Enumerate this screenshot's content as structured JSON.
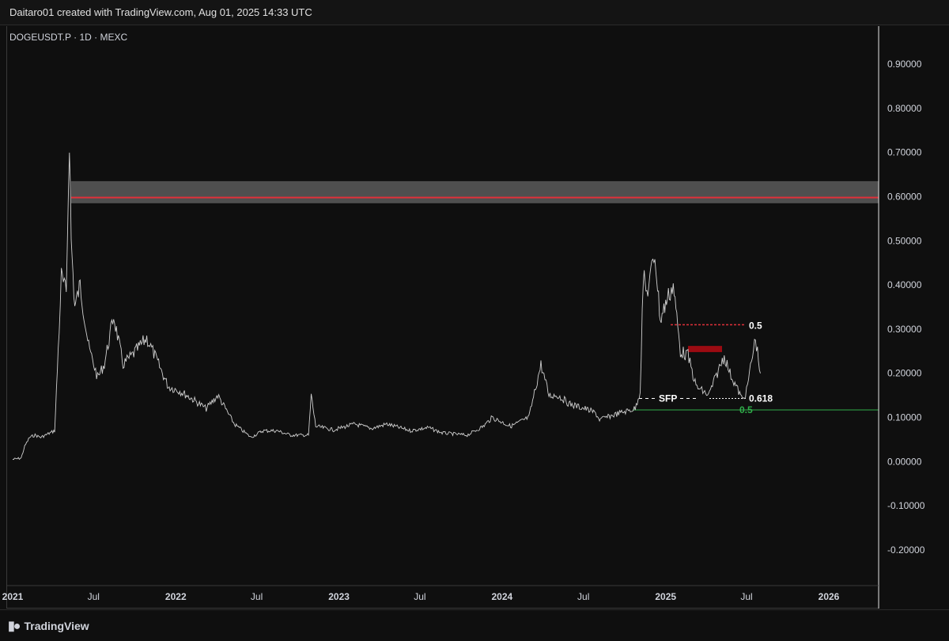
{
  "header": {
    "attribution": "Daitaro01 created with TradingView.com, Aug 01, 2025 14:33 UTC"
  },
  "chart": {
    "symbol_line": "DOGEUSDT.P · 1D · MEXC"
  },
  "footer": {
    "brand": "TradingView"
  },
  "colors": {
    "background": "#0f0f0f",
    "price_line": "#cfcfcf",
    "resistance_zone": "#5a5a5a",
    "resistance_line": "#e0303a",
    "supply_block": "#9b0b12",
    "support_line": "#2fae4a",
    "fib_red": "#e0303a",
    "fib_green": "#2fae4a"
  },
  "chart_data": {
    "type": "line",
    "title": "DOGEUSDT.P · 1D · MEXC",
    "ylim": [
      -0.25,
      0.99
    ],
    "y_ticks": [
      "0.90000",
      "0.80000",
      "0.70000",
      "0.60000",
      "0.50000",
      "0.40000",
      "0.30000",
      "0.20000",
      "0.10000",
      "0.00000",
      "-0.10000",
      "-0.20000"
    ],
    "x_ticks": [
      "2021",
      "Jul",
      "2022",
      "Jul",
      "2023",
      "Jul",
      "2024",
      "Jul",
      "2025",
      "Jul",
      "2026"
    ],
    "series": [
      {
        "x": [
          "2021-01-01",
          "2021-01-20",
          "2021-01-28",
          "2021-02-08",
          "2021-02-20",
          "2021-03-05",
          "2021-04-05",
          "2021-04-15",
          "2021-04-20",
          "2021-05-01",
          "2021-05-08",
          "2021-05-12",
          "2021-05-20",
          "2021-06-01",
          "2021-06-20",
          "2021-07-10",
          "2021-07-25",
          "2021-08-15",
          "2021-09-05",
          "2021-09-25",
          "2021-10-28",
          "2021-11-15",
          "2021-12-15",
          "2022-01-10",
          "2022-02-10",
          "2022-03-10",
          "2022-04-05",
          "2022-05-12",
          "2022-06-18",
          "2022-07-15",
          "2022-08-15",
          "2022-09-15",
          "2022-10-25",
          "2022-10-31",
          "2022-11-10",
          "2022-12-20",
          "2023-02-05",
          "2023-03-15",
          "2023-04-18",
          "2023-06-10",
          "2023-07-20",
          "2023-08-20",
          "2023-10-15",
          "2023-11-20",
          "2023-12-10",
          "2024-01-20",
          "2024-03-01",
          "2024-03-28",
          "2024-04-15",
          "2024-05-05",
          "2024-06-01",
          "2024-07-05",
          "2024-07-28",
          "2024-08-06",
          "2024-09-20",
          "2024-10-25",
          "2024-11-05",
          "2024-11-12",
          "2024-11-20",
          "2024-12-08",
          "2024-12-20",
          "2025-01-05",
          "2025-01-18",
          "2025-02-03",
          "2025-02-20",
          "2025-03-10",
          "2025-04-07",
          "2025-05-12",
          "2025-05-25",
          "2025-06-22",
          "2025-07-01",
          "2025-07-21",
          "2025-08-01"
        ],
        "values": [
          0.005,
          0.008,
          0.035,
          0.055,
          0.06,
          0.055,
          0.07,
          0.3,
          0.42,
          0.38,
          0.74,
          0.5,
          0.35,
          0.4,
          0.26,
          0.19,
          0.22,
          0.33,
          0.22,
          0.24,
          0.28,
          0.24,
          0.17,
          0.16,
          0.14,
          0.12,
          0.15,
          0.085,
          0.055,
          0.07,
          0.07,
          0.06,
          0.06,
          0.15,
          0.08,
          0.072,
          0.085,
          0.075,
          0.085,
          0.07,
          0.077,
          0.065,
          0.06,
          0.08,
          0.1,
          0.08,
          0.1,
          0.22,
          0.15,
          0.15,
          0.13,
          0.12,
          0.11,
          0.095,
          0.11,
          0.12,
          0.16,
          0.42,
          0.38,
          0.47,
          0.32,
          0.37,
          0.4,
          0.25,
          0.24,
          0.17,
          0.15,
          0.24,
          0.2,
          0.14,
          0.16,
          0.28,
          0.2
        ]
      }
    ],
    "annotations": {
      "resistance_zone": [
        0.585,
        0.635
      ],
      "resistance_line": 0.598,
      "supply_block": [
        0.248,
        0.262
      ],
      "fib_red": {
        "label": "0.5",
        "value": 0.31
      },
      "sfp": {
        "label": "SFP",
        "value": 0.143
      },
      "fib_white": {
        "label": "0.618",
        "value": 0.143
      },
      "fib_green": {
        "label": "0.5",
        "value": 0.117
      }
    }
  }
}
